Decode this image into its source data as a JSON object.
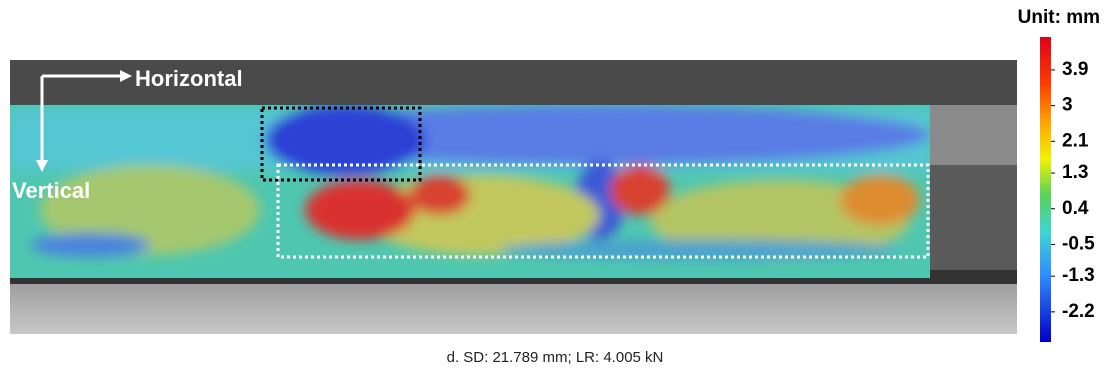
{
  "unit_label": "Unit: mm",
  "annotations": {
    "horizontal": "Horizontal",
    "vertical": "Vertical"
  },
  "colorbar": {
    "lim": [
      -2.96,
      4.73
    ],
    "ticks": [
      3.9,
      3.0,
      2.1,
      1.3,
      0.4,
      -0.5,
      -1.3,
      -2.2
    ]
  },
  "caption": "d. SD: 21.789 mm; LR: 4.005 kN"
}
